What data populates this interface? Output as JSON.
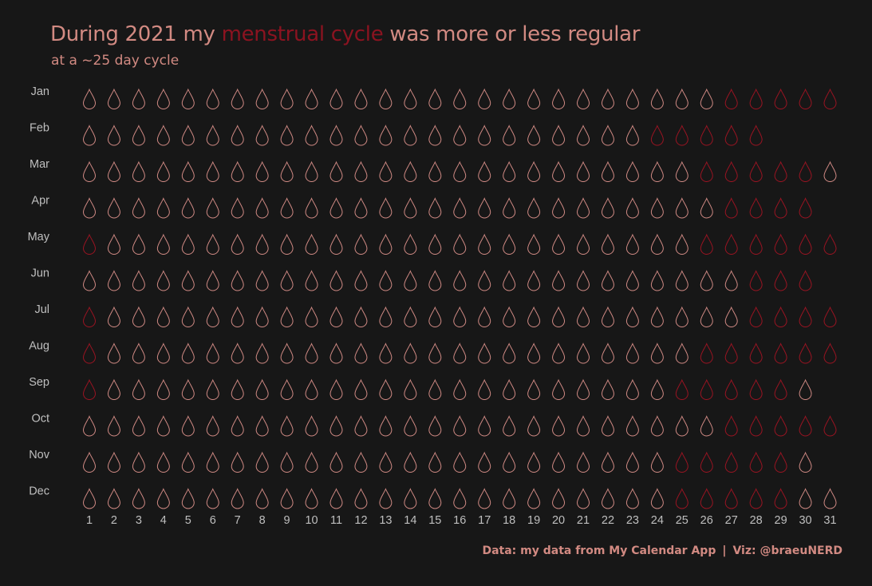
{
  "title": {
    "before": "During 2021 my ",
    "highlight": "menstrual cycle",
    "after": " was more or less regular"
  },
  "subtitle": "at a ~25 day cycle",
  "caption": {
    "data": "Data: my data from My Calendar App",
    "separator": "|",
    "viz": "Viz: @braeuNERD"
  },
  "colors": {
    "background": "#171717",
    "normal_day": "#d08a84",
    "period_day": "#9a1422",
    "title_text": "#d28a82",
    "highlight_text": "#8b1320",
    "axis_text": "#bfbfbf"
  },
  "chart_data": {
    "type": "calendar-pictogram",
    "year": 2021,
    "marker": "drop-icon",
    "xlabel": "",
    "ylabel": "",
    "days": [
      "1",
      "2",
      "3",
      "4",
      "5",
      "6",
      "7",
      "8",
      "9",
      "10",
      "11",
      "12",
      "13",
      "14",
      "15",
      "16",
      "17",
      "18",
      "19",
      "20",
      "21",
      "22",
      "23",
      "24",
      "25",
      "26",
      "27",
      "28",
      "29",
      "30",
      "31"
    ],
    "months": [
      {
        "name": "Jan",
        "days_in_month": 31,
        "period_days": [
          27,
          28,
          29,
          30,
          31
        ]
      },
      {
        "name": "Feb",
        "days_in_month": 28,
        "period_days": [
          24,
          25,
          26,
          27,
          28
        ]
      },
      {
        "name": "Mar",
        "days_in_month": 31,
        "period_days": [
          26,
          27,
          28,
          29,
          30
        ]
      },
      {
        "name": "Apr",
        "days_in_month": 30,
        "period_days": [
          27,
          28,
          29,
          30
        ]
      },
      {
        "name": "May",
        "days_in_month": 31,
        "period_days": [
          1,
          26,
          27,
          28,
          29,
          30,
          31
        ]
      },
      {
        "name": "Jun",
        "days_in_month": 30,
        "period_days": [
          28,
          29,
          30
        ]
      },
      {
        "name": "Jul",
        "days_in_month": 31,
        "period_days": [
          1,
          28,
          29,
          30,
          31
        ]
      },
      {
        "name": "Aug",
        "days_in_month": 31,
        "period_days": [
          1,
          26,
          27,
          28,
          29,
          30,
          31
        ]
      },
      {
        "name": "Sep",
        "days_in_month": 30,
        "period_days": [
          1,
          25,
          26,
          27,
          28,
          29
        ]
      },
      {
        "name": "Oct",
        "days_in_month": 31,
        "period_days": [
          27,
          28,
          29,
          30,
          31
        ]
      },
      {
        "name": "Nov",
        "days_in_month": 30,
        "period_days": [
          25,
          26,
          27,
          28,
          29
        ]
      },
      {
        "name": "Dec",
        "days_in_month": 31,
        "period_days": [
          25,
          26,
          27,
          28,
          29
        ]
      }
    ]
  }
}
